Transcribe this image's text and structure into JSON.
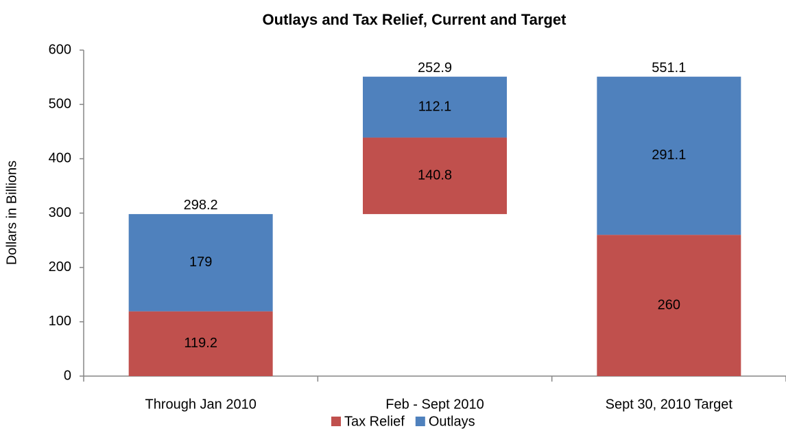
{
  "chart_data": {
    "type": "waterfall",
    "title": "Outlays and Tax Relief, Current and Target",
    "ylabel": "Dollars in Billions",
    "categories": [
      "Through Jan 2010",
      "Feb - Sept 2010",
      "Sept 30, 2010 Target"
    ],
    "measure": [
      "relative",
      "relative",
      "total"
    ],
    "series": [
      {
        "name": "Tax Relief",
        "color": "#c0504d",
        "values": [
          119.2,
          140.8,
          260
        ]
      },
      {
        "name": "Outlays",
        "color": "#4f81bd",
        "values": [
          179,
          112.1,
          291.1
        ]
      }
    ],
    "totals": [
      298.2,
      252.9,
      551.1
    ],
    "ylim": [
      0,
      600
    ],
    "yticks": [
      0,
      100,
      200,
      300,
      400,
      500,
      600
    ],
    "grid": false,
    "legend": "bottom"
  }
}
